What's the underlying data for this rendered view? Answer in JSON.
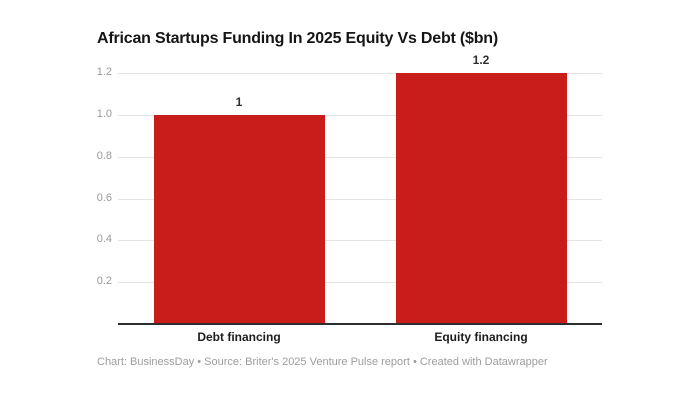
{
  "title": "African Startups Funding In 2025 Equity Vs Debt ($bn)",
  "footer": "Chart: BusinessDay • Source: Briter's 2025 Venture Pulse report  • Created with Datawrapper",
  "colors": {
    "bar": "#c91d1b",
    "grid": "#e4e4e4",
    "baseline": "#2e2e2e",
    "axis_text": "#999999",
    "title_text": "#151515",
    "footer_text": "#9d9d9d"
  },
  "chart_data": {
    "type": "bar",
    "title": "African Startups Funding In 2025 Equity Vs Debt ($bn)",
    "categories": [
      "Debt financing",
      "Equity financing"
    ],
    "values": [
      1,
      1.2
    ],
    "value_labels": [
      "1",
      "1.2"
    ],
    "xlabel": "",
    "ylabel": "",
    "ylim": [
      0,
      1.2
    ],
    "yticks": [
      0.2,
      0.4,
      0.6,
      0.8,
      1.0,
      1.2
    ],
    "ytick_labels": [
      "0.2",
      "0.4",
      "0.6",
      "0.8",
      "1.0",
      "1.2"
    ],
    "grid": true,
    "legend": "none",
    "bar_color": "#c91d1b"
  }
}
